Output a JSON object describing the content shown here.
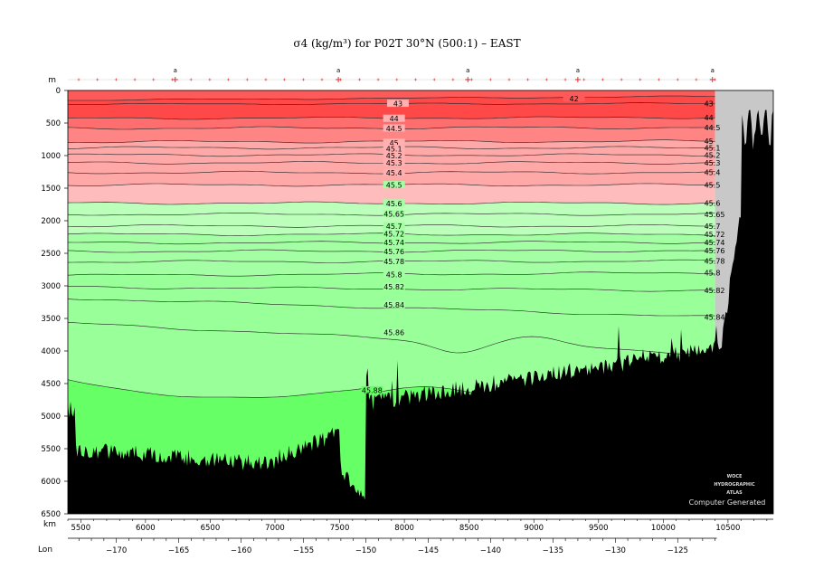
{
  "chart_data": {
    "type": "contour-section",
    "title": "σ4 (kg/m³) for P02T 30°N (500:1) – EAST",
    "depth_unit": "m",
    "distance_unit": "km",
    "lon_label": "Lon",
    "xlim_km": [
      5400,
      10850
    ],
    "ylim_m": [
      0,
      6500
    ],
    "depth_ticks": [
      0,
      500,
      1000,
      1500,
      2000,
      2500,
      3000,
      3500,
      4000,
      4500,
      5000,
      5500,
      6000,
      6500
    ],
    "depth_tick_labels": [
      "0",
      "500",
      "1000",
      "1500",
      "2000",
      "2500",
      "3000",
      "3500",
      "4000",
      "4500",
      "5000",
      "5500",
      "6000",
      "6500"
    ],
    "km_ticks": [
      5500,
      6000,
      6500,
      7000,
      7500,
      8000,
      8500,
      9000,
      9500,
      10000,
      10500
    ],
    "km_tick_labels": [
      "5500",
      "6000",
      "6500",
      "7000",
      "7500",
      "8000",
      "8500",
      "9000",
      "9500",
      "10000",
      "10500"
    ],
    "lon_ticks": [
      -170,
      -165,
      -160,
      -155,
      -150,
      -145,
      -140,
      -135,
      -130,
      -125
    ],
    "lon_tick_labels": [
      "−170",
      "−165",
      "−160",
      "−155",
      "−150",
      "−145",
      "−140",
      "−135",
      "−130",
      "−125"
    ],
    "lon_at_km": [
      [
        -175,
        5293
      ],
      [
        -120,
        10593
      ]
    ],
    "station_labels": [
      {
        "km": 6230,
        "label": "a"
      },
      {
        "km": 7490,
        "label": "a"
      },
      {
        "km": 8490,
        "label": "a"
      },
      {
        "km": 9340,
        "label": "a"
      },
      {
        "km": 10380,
        "label": "a"
      }
    ],
    "data_end_km": 10400,
    "contours": [
      {
        "label": "42",
        "y_west": 150,
        "y_east": 90,
        "label_km": 9310,
        "label_depth": 130
      },
      {
        "label": "43",
        "y_west": 210,
        "y_east": 200,
        "label_km": 7950,
        "label_depth": 210
      },
      {
        "label": "44",
        "y_west": 430,
        "y_east": 415,
        "label_km": 7920,
        "label_depth": 440
      },
      {
        "label": "44.5",
        "y_west": 580,
        "y_east": 570,
        "label_km": 7920,
        "label_depth": 590
      },
      {
        "label": "45",
        "y_west": 790,
        "y_east": 780,
        "label_km": 7920,
        "label_depth": 810
      },
      {
        "label": "45.1",
        "y_west": 880,
        "y_east": 880,
        "label_km": 7920,
        "label_depth": 900
      },
      {
        "label": "45.2",
        "y_west": 990,
        "y_east": 990,
        "label_km": 7920,
        "label_depth": 1005
      },
      {
        "label": "45.3",
        "y_west": 1110,
        "y_east": 1110,
        "label_km": 7920,
        "label_depth": 1120
      },
      {
        "label": "45.4",
        "y_west": 1260,
        "y_east": 1260,
        "label_km": 7920,
        "label_depth": 1270
      },
      {
        "label": "45.5",
        "y_west": 1450,
        "y_east": 1450,
        "label_km": 7920,
        "label_depth": 1460
      },
      {
        "label": "45.6",
        "y_west": 1730,
        "y_east": 1730,
        "label_km": 7920,
        "label_depth": 1740
      },
      {
        "label": "45.65",
        "y_west": 1900,
        "y_east": 1900,
        "label_km": 7920,
        "label_depth": 1905
      },
      {
        "label": "45.7",
        "y_west": 2080,
        "y_east": 2080,
        "label_km": 7920,
        "label_depth": 2090
      },
      {
        "label": "45.72",
        "y_west": 2210,
        "y_east": 2210,
        "label_km": 7920,
        "label_depth": 2210
      },
      {
        "label": "45.74",
        "y_west": 2340,
        "y_east": 2330,
        "label_km": 7920,
        "label_depth": 2340
      },
      {
        "label": "45.76",
        "y_west": 2470,
        "y_east": 2460,
        "label_km": 7920,
        "label_depth": 2480
      },
      {
        "label": "45.78",
        "y_west": 2630,
        "y_east": 2620,
        "label_km": 7920,
        "label_depth": 2630
      },
      {
        "label": "45.8",
        "y_west": 2840,
        "y_east": 2800,
        "label_km": 7920,
        "label_depth": 2830
      },
      {
        "label": "45.82",
        "y_west": 3020,
        "y_east": 3070,
        "label_km": 7920,
        "label_depth": 3020
      },
      {
        "label": "45.84",
        "y_west": 3190,
        "y_east": 3480,
        "label_km": 7920,
        "label_depth": 3300
      },
      {
        "label": "45.86",
        "y_west": 3570,
        "y_east": 4050,
        "label_km": 7920,
        "label_depth": 3720
      },
      {
        "label": "45.88",
        "y_west": 4430,
        "y_east": 4700,
        "label_km": 7750,
        "label_depth": 4610
      }
    ],
    "edge_labels": [
      "42",
      "43",
      "44",
      "44.5",
      "45",
      "45.1",
      "45.2",
      "45.3",
      "45.4",
      "45.5",
      "45.6",
      "45.65",
      "45.7",
      "45.72",
      "45.74",
      "45.76",
      "45.78",
      "45.8",
      "45.82",
      "45.84",
      "45.86"
    ],
    "colors": {
      "band_42": "#ff5a5a",
      "band_43": "#ff4848",
      "band_44": "#ff6e6e",
      "band_44_5": "#ff8484",
      "band_45": "#ffa8a8",
      "band_45_5": "#ffbcbc",
      "green_light": "#bbffbb",
      "green_mid": "#a4ffa4",
      "green_main": "#99ff99",
      "green_deep": "#66ff66",
      "bottom": "#000000",
      "no_data": "#c8c8c8"
    },
    "watermark": [
      "WOCE",
      "HYDROGRAPHIC",
      "ATLAS"
    ],
    "credit": "Computer Generated"
  }
}
